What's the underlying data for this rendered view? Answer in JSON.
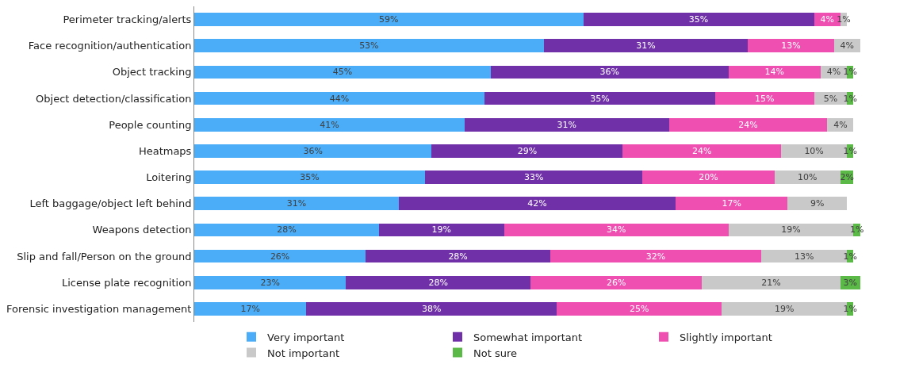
{
  "chart_data": {
    "type": "bar",
    "orientation": "horizontal",
    "stacked": true,
    "grid": false,
    "legend": "bottom",
    "tick_labels": "y",
    "categories": [
      "Perimeter tracking/alerts",
      "Face recognition/authentication",
      "Object tracking",
      "Object detection/classification",
      "People counting",
      "Heatmaps",
      "Loitering",
      "Left baggage/object left behind",
      "Weapons detection",
      "Slip and fall/Person on the ground",
      "License plate recognition",
      "Forensic investigation management"
    ],
    "series": [
      {
        "name": "Very important",
        "color": "#4badf7",
        "values": [
          59,
          53,
          45,
          44,
          41,
          36,
          35,
          31,
          28,
          26,
          23,
          17
        ],
        "value_labels": [
          "59%",
          "53%",
          "45%",
          "44%",
          "41%",
          "36%",
          "35%",
          "31%",
          "28%",
          "26%",
          "23%",
          "17%"
        ]
      },
      {
        "name": "Somewhat important",
        "color": "#7030a8",
        "values": [
          35,
          31,
          36,
          35,
          31,
          29,
          33,
          42,
          19,
          28,
          28,
          38
        ],
        "value_labels": [
          "35%",
          "31%",
          "36%",
          "35%",
          "31%",
          "29%",
          "33%",
          "42%",
          "19%",
          "28%",
          "28%",
          "38%"
        ]
      },
      {
        "name": "Slightly important",
        "color": "#ee4fb1",
        "values": [
          4,
          13,
          14,
          15,
          24,
          24,
          20,
          17,
          34,
          32,
          26,
          25
        ],
        "value_labels": [
          "4%",
          "13%",
          "14%",
          "15%",
          "24%",
          "24%",
          "20%",
          "17%",
          "34%",
          "32%",
          "26%",
          "25%"
        ]
      },
      {
        "name": "Not important",
        "color": "#c9c9c9",
        "values": [
          1,
          4,
          4,
          5,
          4,
          10,
          10,
          9,
          19,
          13,
          21,
          19
        ],
        "value_labels": [
          "1%",
          "4%",
          "4%",
          "5%",
          "4%",
          "10%",
          "10%",
          "9%",
          "19%",
          "13%",
          "21%",
          "19%"
        ]
      },
      {
        "name": "Not sure",
        "color": "#5bb947",
        "values": [
          null,
          null,
          1,
          1,
          null,
          1,
          2,
          null,
          1,
          1,
          3,
          1
        ],
        "value_labels": [
          null,
          null,
          "1%",
          "1%",
          null,
          "1%",
          "2%",
          null,
          "1%",
          "1%",
          "3%",
          "1%"
        ]
      }
    ]
  }
}
